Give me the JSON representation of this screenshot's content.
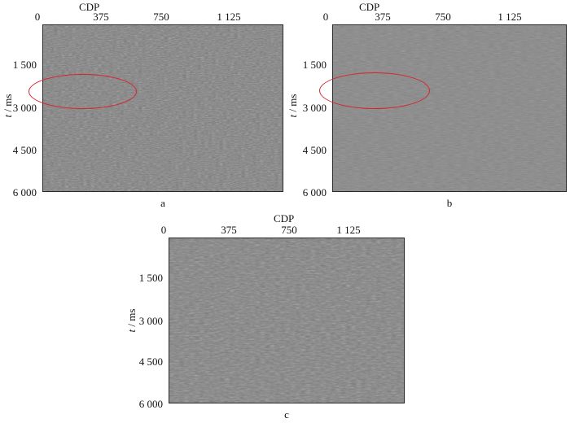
{
  "xaxis": {
    "title": "CDP",
    "ticks": [
      "0",
      "375",
      "750",
      "1 125"
    ]
  },
  "yaxis": {
    "var": "t",
    "unit": " / ms",
    "ticks": [
      "1 500",
      "3 000",
      "4 500",
      "6 000"
    ]
  },
  "panels": [
    {
      "id": "a",
      "caption": "a",
      "highlight": "ellipse",
      "highlight_color": "#d8232a",
      "texture": "base"
    },
    {
      "id": "b",
      "caption": "b",
      "highlight": "ellipse",
      "highlight_color": "#d8232a",
      "texture": "fine"
    },
    {
      "id": "c",
      "caption": "c",
      "highlight": "none",
      "texture": "coarse"
    }
  ]
}
